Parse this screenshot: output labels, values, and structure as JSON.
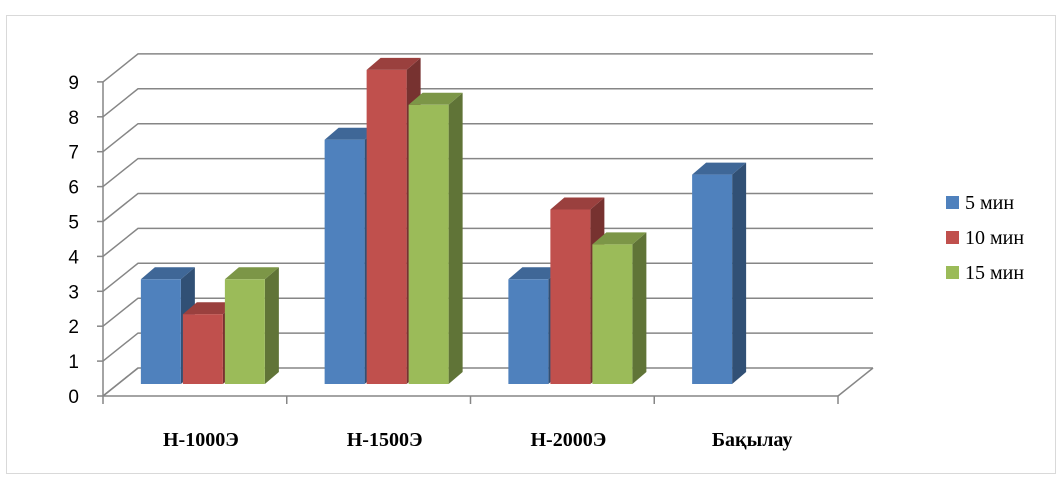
{
  "chart_data": {
    "type": "bar",
    "title": "",
    "xlabel": "",
    "ylabel": "",
    "categories": [
      "Н-1000Э",
      "Н-1500Э",
      "Н-2000Э",
      "Бақылау"
    ],
    "series": [
      {
        "name": "5 мин",
        "color": "#4f81bd",
        "values": [
          3,
          7,
          3,
          6
        ]
      },
      {
        "name": "10 мин",
        "color": "#c0504d",
        "values": [
          2,
          9,
          5,
          null
        ]
      },
      {
        "name": "15 мин",
        "color": "#9bbb59",
        "values": [
          3,
          8,
          4,
          null
        ]
      }
    ],
    "ylim": [
      0,
      9
    ],
    "yticks": [
      "0",
      "1",
      "2",
      "3",
      "4",
      "5",
      "6",
      "7",
      "8",
      "9"
    ],
    "grid": true,
    "legend_position": "right",
    "three_d": true
  }
}
